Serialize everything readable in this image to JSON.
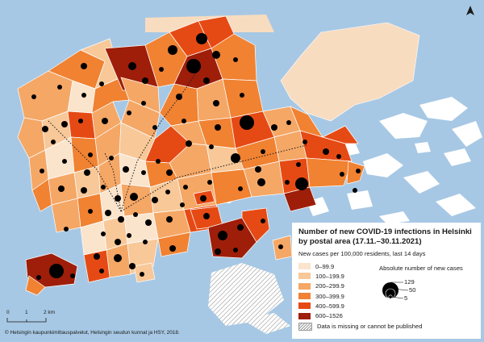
{
  "legend": {
    "title_line1": "Number of new COVID-19 infections in Helsinki",
    "title_line2": "by postal area (17.11.–30.11.2021)",
    "subtitle": "New cases per 100,000 residents, last 14 days",
    "classes": [
      {
        "label": "0–99.9",
        "color": "#fbe4cc"
      },
      {
        "label": "100–199.9",
        "color": "#f8c898"
      },
      {
        "label": "200–299.9",
        "color": "#f5a766"
      },
      {
        "label": "300–399.9",
        "color": "#f08232"
      },
      {
        "label": "400–599.9",
        "color": "#e64a14"
      },
      {
        "label": "600–1526",
        "color": "#9e1e0a"
      }
    ],
    "missing_label": "Data is missing or cannot be published"
  },
  "size_legend": {
    "title": "Absolute number of new cases",
    "values": [
      "129",
      "50",
      "5"
    ]
  },
  "scalebar": {
    "labels": [
      "0",
      "1",
      "2 km"
    ]
  },
  "credit": "© Helsingin kaupunkimittauspalvelut, Helsingin seudun kunnat ja HSY, 2018.",
  "colors": {
    "sea": "#a7c8e4",
    "no_data_land": "#f8dcc0",
    "circle": "#000000",
    "boundary": "#ffffff"
  },
  "icons": {
    "north": "north-arrow-icon"
  }
}
